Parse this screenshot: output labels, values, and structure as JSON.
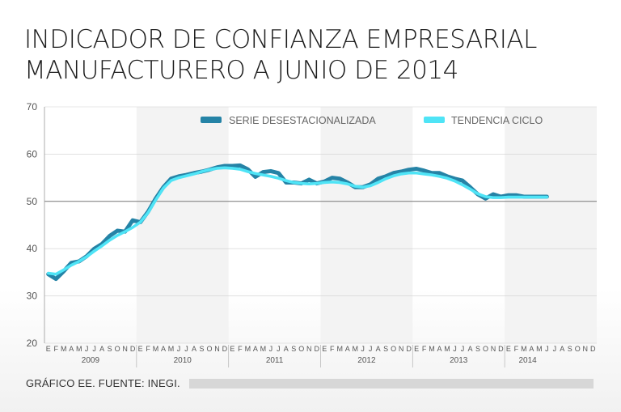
{
  "title": {
    "line1": "INDICADOR DE CONFIANZA EMPRESARIAL",
    "line2": "MANUFACTURERO A JUNIO DE 2014"
  },
  "footer": {
    "text": "GRÁFICO EE. FUENTE: INEGI."
  },
  "colors": {
    "serie": "#2583a6",
    "tendencia": "#4fe4f6",
    "band": "#f3f3f3",
    "grid": "#cfcfcf",
    "refline": "#777777"
  },
  "chart_data": {
    "type": "line",
    "title": "INDICADOR DE CONFIANZA EMPRESARIAL MANUFACTURERO A JUNIO DE 2014",
    "ylim": [
      20,
      70
    ],
    "yticks": [
      20,
      30,
      40,
      50,
      60,
      70
    ],
    "reference_line": 50,
    "legend_position": "top-right",
    "years": [
      "2009",
      "2010",
      "2011",
      "2012",
      "2013",
      "2014"
    ],
    "months": [
      "E",
      "F",
      "M",
      "A",
      "M",
      "J",
      "J",
      "A",
      "S",
      "O",
      "N",
      "D"
    ],
    "series": [
      {
        "name": "SERIE DESESTACIONALIZADA",
        "values": [
          34.6,
          33.6,
          35.2,
          37.0,
          37.3,
          38.4,
          40.0,
          41.0,
          42.7,
          43.8,
          43.6,
          46.0,
          45.6,
          47.8,
          50.6,
          53.0,
          54.8,
          55.3,
          55.6,
          56.0,
          56.3,
          56.7,
          57.2,
          57.5,
          57.5,
          57.6,
          56.8,
          55.2,
          56.2,
          56.4,
          56.0,
          54.0,
          54.0,
          53.8,
          54.6,
          53.8,
          54.2,
          55.0,
          54.8,
          54.0,
          53.0,
          53.0,
          53.6,
          54.8,
          55.3,
          56.0,
          56.3,
          56.7,
          56.9,
          56.5,
          56.0,
          56.0,
          55.3,
          54.8,
          54.4,
          53.0,
          51.5,
          50.6,
          51.5,
          51.0,
          51.3,
          51.3,
          51.0,
          51.0,
          51.0,
          51.0
        ]
      },
      {
        "name": "TENDENCIA CICLO",
        "values": [
          34.8,
          34.6,
          35.5,
          36.5,
          37.3,
          38.3,
          39.5,
          40.6,
          41.8,
          42.8,
          43.6,
          44.5,
          45.6,
          47.6,
          50.3,
          52.8,
          54.4,
          55.0,
          55.4,
          55.8,
          56.3,
          56.7,
          57.0,
          57.1,
          57.0,
          56.8,
          56.3,
          55.9,
          55.6,
          55.3,
          54.9,
          54.4,
          54.0,
          53.8,
          53.7,
          53.8,
          54.0,
          54.1,
          54.0,
          53.7,
          53.2,
          53.0,
          53.3,
          54.0,
          54.8,
          55.4,
          55.8,
          56.0,
          56.0,
          55.8,
          55.6,
          55.3,
          54.9,
          54.3,
          53.5,
          52.6,
          51.6,
          51.0,
          50.8,
          50.8,
          50.9,
          50.9,
          50.9,
          50.9,
          50.9,
          50.9
        ]
      }
    ]
  }
}
